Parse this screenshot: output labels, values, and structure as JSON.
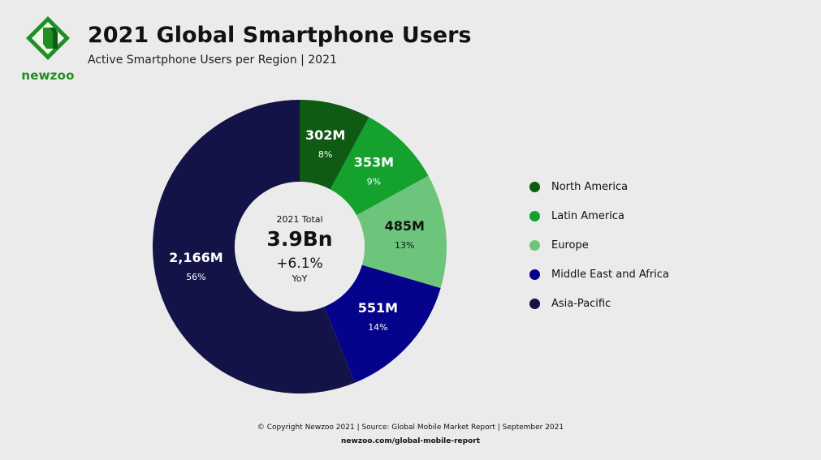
{
  "brand": {
    "logo_text": "newzoo",
    "primary": "#1f8f24",
    "secondary": "#0d5b14"
  },
  "header": {
    "title": "2021 Global Smartphone Users",
    "subtitle": "Active Smartphone Users per Region | 2021"
  },
  "center": {
    "label": "2021 Total",
    "value": "3.9Bn",
    "growth": "+6.1%",
    "yoy": "YoY"
  },
  "chart_data": {
    "type": "pie",
    "categories": [
      "North America",
      "Latin America",
      "Europe",
      "Middle East and Africa",
      "Asia-Pacific"
    ],
    "values": [
      302,
      353,
      485,
      551,
      2166
    ],
    "value_labels": [
      "302M",
      "353M",
      "485M",
      "551M",
      "2,166M"
    ],
    "percent_labels": [
      "8%",
      "9%",
      "13%",
      "14%",
      "56%"
    ],
    "colors": [
      "#0f5b14",
      "#14a12d",
      "#6dc57c",
      "#05028c",
      "#141347"
    ],
    "label_colors": [
      "#ffffff",
      "#ffffff",
      "#111111",
      "#ffffff",
      "#ffffff"
    ],
    "legend_position": "right",
    "title": "2021 Global Smartphone Users",
    "subtitle": "Active Smartphone Users per Region | 2021"
  },
  "footer": {
    "copyright": "© Copyright Newzoo 2021 | Source: Global Mobile Market Report | September 2021",
    "link": "newzoo.com/global-mobile-report"
  }
}
